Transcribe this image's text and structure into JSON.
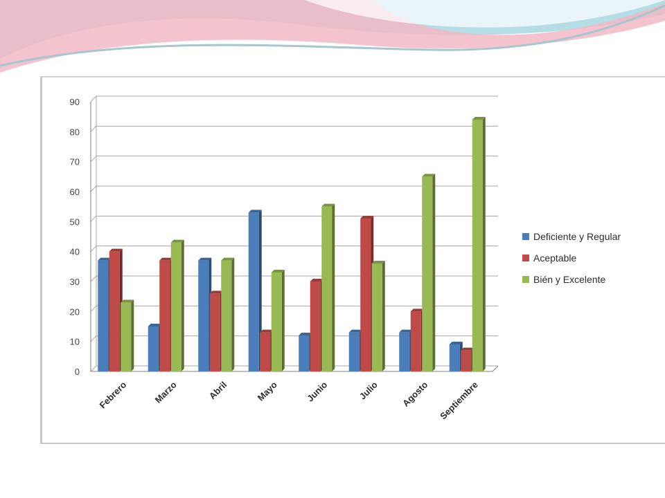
{
  "slide": {
    "decor_colors": [
      "#b5dde6",
      "#f1b9c6",
      "#a7c6cf"
    ]
  },
  "chart_data": {
    "type": "bar",
    "title": "",
    "xlabel": "",
    "ylabel": "",
    "ylim": [
      0,
      90
    ],
    "yticks": [
      0,
      10,
      20,
      30,
      40,
      50,
      60,
      70,
      80,
      90
    ],
    "grid": true,
    "legend_position": "right",
    "categories": [
      "Febrero",
      "Marzo",
      "Abril",
      "Mayo",
      "Junio",
      "Julio",
      "Agosto",
      "Septiembre"
    ],
    "series": [
      {
        "name": "Deficiente y Regular",
        "color": "#4a7ebb",
        "values": [
          37,
          15,
          37,
          53,
          12,
          13,
          13,
          9
        ]
      },
      {
        "name": "Aceptable",
        "color": "#be4b48",
        "values": [
          40,
          37,
          26,
          13,
          30,
          51,
          20,
          7
        ]
      },
      {
        "name": "Bién y Excelente",
        "color": "#98b954",
        "values": [
          23,
          43,
          37,
          33,
          55,
          36,
          65,
          84
        ]
      }
    ]
  }
}
